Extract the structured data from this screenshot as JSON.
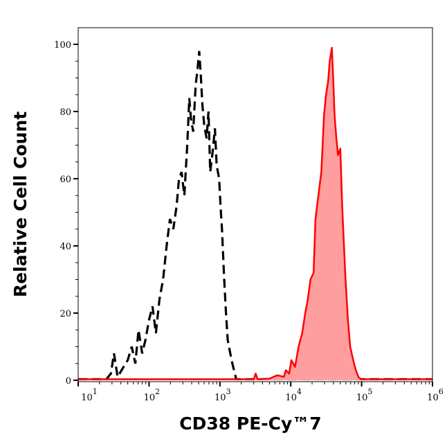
{
  "chart_data": {
    "type": "area",
    "xlabel": "CD38 PE-Cy™7",
    "ylabel": "Relative Cell Count",
    "x_scale": "log",
    "xlim": [
      10,
      1000000
    ],
    "ylim": [
      0,
      105
    ],
    "grid": false,
    "x_ticks": [
      {
        "value": 10,
        "base": "10",
        "exp": "1"
      },
      {
        "value": 100,
        "base": "10",
        "exp": "2"
      },
      {
        "value": 1000,
        "base": "10",
        "exp": "3"
      },
      {
        "value": 10000,
        "base": "10",
        "exp": "4"
      },
      {
        "value": 100000,
        "base": "10",
        "exp": "5"
      },
      {
        "value": 1000000,
        "base": "10",
        "exp": "6"
      }
    ],
    "y_ticks": [
      "0",
      "20",
      "40",
      "60",
      "80",
      "100"
    ],
    "series": [
      {
        "style": "dashed-line",
        "color": "#000000",
        "points": [
          [
            10,
            0.3
          ],
          [
            25,
            0.3
          ],
          [
            29,
            2
          ],
          [
            32,
            8
          ],
          [
            36,
            1
          ],
          [
            41,
            3
          ],
          [
            50,
            6
          ],
          [
            57,
            10
          ],
          [
            64,
            5
          ],
          [
            71,
            15
          ],
          [
            80,
            8
          ],
          [
            89,
            12
          ],
          [
            100,
            18
          ],
          [
            112,
            22
          ],
          [
            125,
            14
          ],
          [
            140,
            24
          ],
          [
            158,
            30
          ],
          [
            177,
            40
          ],
          [
            197,
            48
          ],
          [
            220,
            45
          ],
          [
            245,
            52
          ],
          [
            265,
            60
          ],
          [
            288,
            62
          ],
          [
            315,
            55
          ],
          [
            346,
            70
          ],
          [
            370,
            84
          ],
          [
            390,
            78
          ],
          [
            420,
            74
          ],
          [
            455,
            88
          ],
          [
            480,
            92
          ],
          [
            510,
            98
          ],
          [
            540,
            90
          ],
          [
            566,
            82
          ],
          [
            600,
            76
          ],
          [
            650,
            72
          ],
          [
            690,
            80
          ],
          [
            730,
            62
          ],
          [
            790,
            68
          ],
          [
            850,
            75
          ],
          [
            900,
            64
          ],
          [
            975,
            60
          ],
          [
            1020,
            52
          ],
          [
            1070,
            45
          ],
          [
            1150,
            30
          ],
          [
            1220,
            20
          ],
          [
            1290,
            12
          ],
          [
            1400,
            8
          ],
          [
            1500,
            5
          ],
          [
            1700,
            0.3
          ],
          [
            1000000,
            0.3
          ]
        ]
      },
      {
        "style": "filled-area",
        "color": "#ff0000",
        "fill": "#ff9e9e",
        "points": [
          [
            10,
            0.3
          ],
          [
            3000,
            0.3
          ],
          [
            3200,
            2
          ],
          [
            3400,
            0.3
          ],
          [
            5000,
            0.5
          ],
          [
            6500,
            1.5
          ],
          [
            8000,
            1
          ],
          [
            8500,
            3
          ],
          [
            9500,
            2
          ],
          [
            10200,
            6
          ],
          [
            11500,
            4
          ],
          [
            12900,
            10
          ],
          [
            14500,
            14
          ],
          [
            16000,
            20
          ],
          [
            17400,
            24
          ],
          [
            19000,
            30
          ],
          [
            21000,
            32
          ],
          [
            22300,
            48
          ],
          [
            24500,
            55
          ],
          [
            27000,
            62
          ],
          [
            29500,
            79
          ],
          [
            31500,
            85
          ],
          [
            33700,
            89
          ],
          [
            35500,
            95
          ],
          [
            38000,
            99
          ],
          [
            40000,
            88
          ],
          [
            41500,
            79
          ],
          [
            44000,
            72
          ],
          [
            46500,
            67
          ],
          [
            50000,
            69
          ],
          [
            53400,
            51
          ],
          [
            59000,
            31
          ],
          [
            64000,
            18
          ],
          [
            69000,
            10
          ],
          [
            76000,
            6
          ],
          [
            83000,
            3
          ],
          [
            90000,
            1
          ],
          [
            98000,
            0.3
          ],
          [
            1000000,
            0.3
          ]
        ]
      }
    ]
  }
}
